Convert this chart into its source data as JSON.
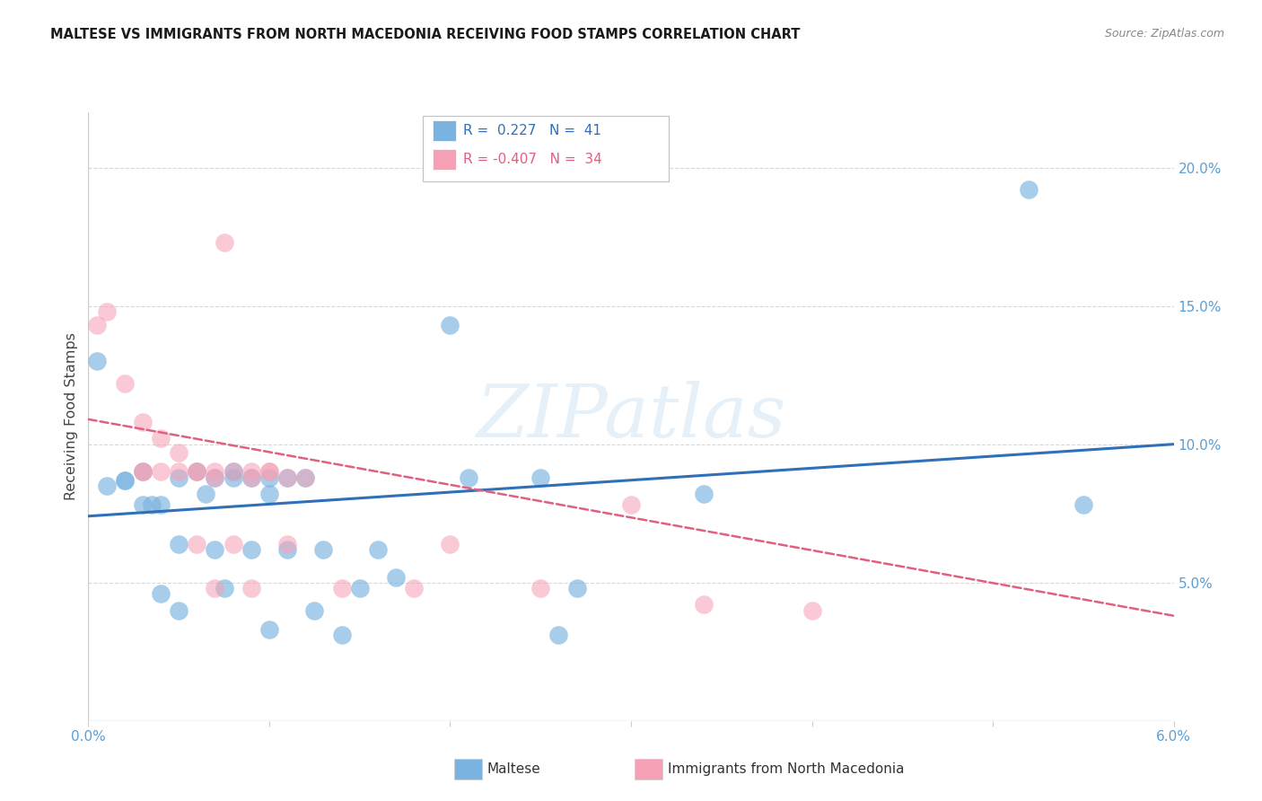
{
  "title": "MALTESE VS IMMIGRANTS FROM NORTH MACEDONIA RECEIVING FOOD STAMPS CORRELATION CHART",
  "source": "Source: ZipAtlas.com",
  "ylabel": "Receiving Food Stamps",
  "xlim": [
    0.0,
    0.06
  ],
  "ylim": [
    0.0,
    0.22
  ],
  "xticks": [
    0.0,
    0.01,
    0.02,
    0.03,
    0.04,
    0.05,
    0.06
  ],
  "yticks_right": [
    0.0,
    0.05,
    0.1,
    0.15,
    0.2
  ],
  "ytick_labels_right": [
    "",
    "5.0%",
    "10.0%",
    "15.0%",
    "20.0%"
  ],
  "blue_color": "#7ab3e0",
  "pink_color": "#f5a0b5",
  "blue_line_color": "#3070b8",
  "pink_line_color": "#e06080",
  "watermark_text": "ZIPatlas",
  "blue_scatter_x": [
    0.0005,
    0.001,
    0.002,
    0.002,
    0.003,
    0.003,
    0.0035,
    0.004,
    0.004,
    0.005,
    0.005,
    0.005,
    0.006,
    0.0065,
    0.007,
    0.007,
    0.0075,
    0.008,
    0.008,
    0.009,
    0.009,
    0.01,
    0.01,
    0.01,
    0.011,
    0.011,
    0.012,
    0.0125,
    0.013,
    0.014,
    0.015,
    0.016,
    0.017,
    0.02,
    0.021,
    0.025,
    0.026,
    0.027,
    0.034,
    0.052,
    0.055
  ],
  "blue_scatter_y": [
    0.13,
    0.085,
    0.087,
    0.087,
    0.09,
    0.078,
    0.078,
    0.078,
    0.046,
    0.04,
    0.064,
    0.088,
    0.09,
    0.082,
    0.088,
    0.062,
    0.048,
    0.09,
    0.088,
    0.088,
    0.062,
    0.033,
    0.082,
    0.088,
    0.088,
    0.062,
    0.088,
    0.04,
    0.062,
    0.031,
    0.048,
    0.062,
    0.052,
    0.143,
    0.088,
    0.088,
    0.031,
    0.048,
    0.082,
    0.192,
    0.078
  ],
  "pink_scatter_x": [
    0.0005,
    0.001,
    0.002,
    0.003,
    0.003,
    0.003,
    0.004,
    0.004,
    0.005,
    0.005,
    0.006,
    0.006,
    0.006,
    0.007,
    0.007,
    0.007,
    0.0075,
    0.008,
    0.008,
    0.009,
    0.009,
    0.009,
    0.01,
    0.01,
    0.011,
    0.011,
    0.012,
    0.014,
    0.018,
    0.02,
    0.025,
    0.03,
    0.034,
    0.04
  ],
  "pink_scatter_y": [
    0.143,
    0.148,
    0.122,
    0.108,
    0.09,
    0.09,
    0.102,
    0.09,
    0.097,
    0.09,
    0.09,
    0.09,
    0.064,
    0.09,
    0.088,
    0.048,
    0.173,
    0.09,
    0.064,
    0.09,
    0.048,
    0.088,
    0.09,
    0.09,
    0.088,
    0.064,
    0.088,
    0.048,
    0.048,
    0.064,
    0.048,
    0.078,
    0.042,
    0.04
  ],
  "blue_trend_x": [
    0.0,
    0.06
  ],
  "blue_trend_y": [
    0.074,
    0.1
  ],
  "pink_trend_x": [
    0.0,
    0.06
  ],
  "pink_trend_y": [
    0.109,
    0.038
  ],
  "background_color": "#ffffff",
  "grid_color": "#d8d8d8",
  "title_color": "#1a1a1a",
  "source_color": "#888888",
  "axis_label_color": "#444444",
  "tick_label_color": "#5a9fd4"
}
